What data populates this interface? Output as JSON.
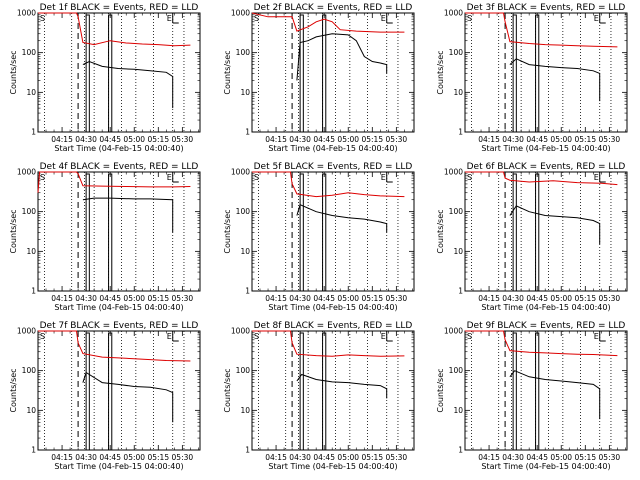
{
  "panels": [
    {
      "id": 1,
      "title": "Det 1f BLACK = Events, RED = LLD",
      "ylabel": "Counts/sec",
      "xlabel": "Start Time (04-Feb-15 04:00:40)"
    },
    {
      "id": 2,
      "title": "Det 2f BLACK = Events, RED = LLD",
      "ylabel": "Counts/sec",
      "xlabel": "Start Time (04-Feb-15 04:00:40)"
    },
    {
      "id": 3,
      "title": "Det 3f BLACK = Events, RED = LLD",
      "ylabel": "Counts/sec",
      "xlabel": "Start Time (04-Feb-15 04:00:40)"
    },
    {
      "id": 4,
      "title": "Det 4f BLACK = Events, RED = LLD",
      "ylabel": "Counts/sec",
      "xlabel": "Start Time (04-Feb-15 04:00:40)"
    },
    {
      "id": 5,
      "title": "Det 5f BLACK = Events, RED = LLD",
      "ylabel": "Counts/sec",
      "xlabel": "Start Time (04-Feb-15 04:00:40)"
    },
    {
      "id": 6,
      "title": "Det 6f BLACK = Events, RED = LLD",
      "ylabel": "Counts/sec",
      "xlabel": "Start Time (04-Feb-15 04:00:40)"
    },
    {
      "id": 7,
      "title": "Det 7f BLACK = Events, RED = LLD",
      "ylabel": "Counts/sec",
      "xlabel": "Start Time (04-Feb-15 04:00:40)"
    },
    {
      "id": 8,
      "title": "Det 8f BLACK = Events, RED = LLD",
      "ylabel": "Counts/sec",
      "xlabel": "Start Time (04-Feb-15 04:00:40)"
    },
    {
      "id": 9,
      "title": "Det 9f BLACK = Events, RED = LLD",
      "ylabel": "Counts/sec",
      "xlabel": "Start Time (04-Feb-15 04:00:40)"
    }
  ],
  "flags": {
    "start": "S",
    "end": "E"
  },
  "chart_data": {
    "type": "line",
    "layout": "3x3 small multiples",
    "x_axis": {
      "unit": "time HH:MM",
      "range": [
        "04:00:40",
        "05:41"
      ],
      "tick_labels": [
        "04:15",
        "04:30",
        "04:45",
        "05:00",
        "05:15",
        "05:30"
      ],
      "tick_minutes": [
        15,
        30,
        45,
        60,
        75,
        90
      ]
    },
    "y_axis": {
      "scale": "log",
      "range": [
        1,
        1000
      ],
      "tick_labels": [
        "1",
        "10",
        "100",
        "1000"
      ],
      "tick_values": [
        1,
        10,
        100,
        1000
      ]
    },
    "grid": false,
    "markers": {
      "dotted_minutes": [
        4,
        21,
        29,
        35,
        44,
        52,
        61,
        72,
        84,
        91
      ],
      "dashed_minute": 25,
      "solid_boxes_minutes": [
        [
          30,
          32
        ],
        [
          44,
          46
        ]
      ],
      "end_bracket_minute": 84
    },
    "colors": {
      "events": "#000000",
      "lld": "#dd0000"
    },
    "series": [
      {
        "panel": 1,
        "events": [
          [
            28,
            50
          ],
          [
            32,
            60
          ],
          [
            40,
            45
          ],
          [
            50,
            40
          ],
          [
            60,
            38
          ],
          [
            70,
            35
          ],
          [
            80,
            32
          ],
          [
            84,
            25
          ],
          [
            84,
            4
          ]
        ],
        "lld": [
          [
            0,
            1000
          ],
          [
            24,
            1000
          ],
          [
            25,
            800
          ],
          [
            28,
            180
          ],
          [
            35,
            160
          ],
          [
            45,
            200
          ],
          [
            55,
            175
          ],
          [
            65,
            165
          ],
          [
            75,
            160
          ],
          [
            85,
            150
          ],
          [
            95,
            155
          ]
        ]
      },
      {
        "panel": 2,
        "events": [
          [
            28,
            20
          ],
          [
            30,
            180
          ],
          [
            35,
            200
          ],
          [
            40,
            250
          ],
          [
            50,
            300
          ],
          [
            60,
            280
          ],
          [
            65,
            200
          ],
          [
            70,
            80
          ],
          [
            75,
            60
          ],
          [
            80,
            55
          ],
          [
            84,
            50
          ],
          [
            84,
            30
          ]
        ],
        "lld": [
          [
            0,
            1000
          ],
          [
            10,
            800
          ],
          [
            25,
            800
          ],
          [
            28,
            350
          ],
          [
            35,
            450
          ],
          [
            40,
            600
          ],
          [
            45,
            700
          ],
          [
            50,
            600
          ],
          [
            55,
            380
          ],
          [
            65,
            350
          ],
          [
            80,
            330
          ],
          [
            95,
            330
          ]
        ]
      },
      {
        "panel": 3,
        "events": [
          [
            28,
            50
          ],
          [
            32,
            70
          ],
          [
            40,
            50
          ],
          [
            50,
            45
          ],
          [
            60,
            42
          ],
          [
            70,
            40
          ],
          [
            80,
            35
          ],
          [
            84,
            30
          ],
          [
            84,
            6
          ]
        ],
        "lld": [
          [
            0,
            1000
          ],
          [
            24,
            1000
          ],
          [
            25,
            600
          ],
          [
            28,
            190
          ],
          [
            40,
            170
          ],
          [
            50,
            160
          ],
          [
            60,
            155
          ],
          [
            70,
            150
          ],
          [
            80,
            145
          ],
          [
            95,
            140
          ]
        ]
      },
      {
        "panel": 4,
        "events": [
          [
            28,
            200
          ],
          [
            35,
            220
          ],
          [
            45,
            220
          ],
          [
            60,
            210
          ],
          [
            70,
            210
          ],
          [
            84,
            200
          ],
          [
            84,
            30
          ]
        ],
        "lld": [
          [
            0,
            300
          ],
          [
            1,
            1000
          ],
          [
            24,
            1000
          ],
          [
            25,
            900
          ],
          [
            28,
            450
          ],
          [
            40,
            440
          ],
          [
            55,
            430
          ],
          [
            70,
            420
          ],
          [
            85,
            420
          ],
          [
            95,
            430
          ]
        ]
      },
      {
        "panel": 5,
        "events": [
          [
            28,
            80
          ],
          [
            30,
            150
          ],
          [
            40,
            100
          ],
          [
            50,
            80
          ],
          [
            60,
            70
          ],
          [
            70,
            65
          ],
          [
            80,
            55
          ],
          [
            84,
            50
          ],
          [
            84,
            30
          ]
        ],
        "lld": [
          [
            0,
            1000
          ],
          [
            24,
            1000
          ],
          [
            25,
            500
          ],
          [
            28,
            280
          ],
          [
            40,
            240
          ],
          [
            50,
            260
          ],
          [
            60,
            300
          ],
          [
            70,
            270
          ],
          [
            80,
            250
          ],
          [
            95,
            240
          ]
        ]
      },
      {
        "panel": 6,
        "events": [
          [
            28,
            80
          ],
          [
            32,
            140
          ],
          [
            40,
            100
          ],
          [
            50,
            80
          ],
          [
            60,
            75
          ],
          [
            70,
            70
          ],
          [
            80,
            60
          ],
          [
            84,
            50
          ],
          [
            84,
            15
          ]
        ],
        "lld": [
          [
            0,
            1000
          ],
          [
            24,
            1000
          ],
          [
            25,
            700
          ],
          [
            28,
            620
          ],
          [
            40,
            560
          ],
          [
            55,
            600
          ],
          [
            70,
            540
          ],
          [
            85,
            520
          ],
          [
            95,
            480
          ]
        ]
      },
      {
        "panel": 7,
        "events": [
          [
            28,
            50
          ],
          [
            30,
            90
          ],
          [
            40,
            50
          ],
          [
            50,
            45
          ],
          [
            60,
            40
          ],
          [
            70,
            38
          ],
          [
            80,
            33
          ],
          [
            84,
            28
          ],
          [
            84,
            5
          ]
        ],
        "lld": [
          [
            0,
            1000
          ],
          [
            24,
            1000
          ],
          [
            25,
            500
          ],
          [
            28,
            270
          ],
          [
            40,
            220
          ],
          [
            50,
            210
          ],
          [
            60,
            200
          ],
          [
            70,
            190
          ],
          [
            80,
            180
          ],
          [
            95,
            175
          ]
        ]
      },
      {
        "panel": 8,
        "events": [
          [
            28,
            55
          ],
          [
            31,
            80
          ],
          [
            40,
            60
          ],
          [
            50,
            52
          ],
          [
            60,
            50
          ],
          [
            70,
            45
          ],
          [
            80,
            42
          ],
          [
            84,
            35
          ],
          [
            84,
            20
          ]
        ],
        "lld": [
          [
            0,
            1000
          ],
          [
            24,
            1000
          ],
          [
            25,
            500
          ],
          [
            28,
            260
          ],
          [
            40,
            240
          ],
          [
            50,
            230
          ],
          [
            60,
            250
          ],
          [
            70,
            240
          ],
          [
            80,
            230
          ],
          [
            95,
            235
          ]
        ]
      },
      {
        "panel": 9,
        "events": [
          [
            28,
            70
          ],
          [
            31,
            100
          ],
          [
            40,
            70
          ],
          [
            50,
            60
          ],
          [
            60,
            55
          ],
          [
            70,
            50
          ],
          [
            80,
            45
          ],
          [
            84,
            35
          ],
          [
            84,
            6
          ]
        ],
        "lld": [
          [
            0,
            1000
          ],
          [
            24,
            1000
          ],
          [
            25,
            600
          ],
          [
            28,
            320
          ],
          [
            40,
            290
          ],
          [
            50,
            280
          ],
          [
            60,
            270
          ],
          [
            70,
            260
          ],
          [
            80,
            255
          ],
          [
            95,
            240
          ]
        ]
      }
    ]
  }
}
